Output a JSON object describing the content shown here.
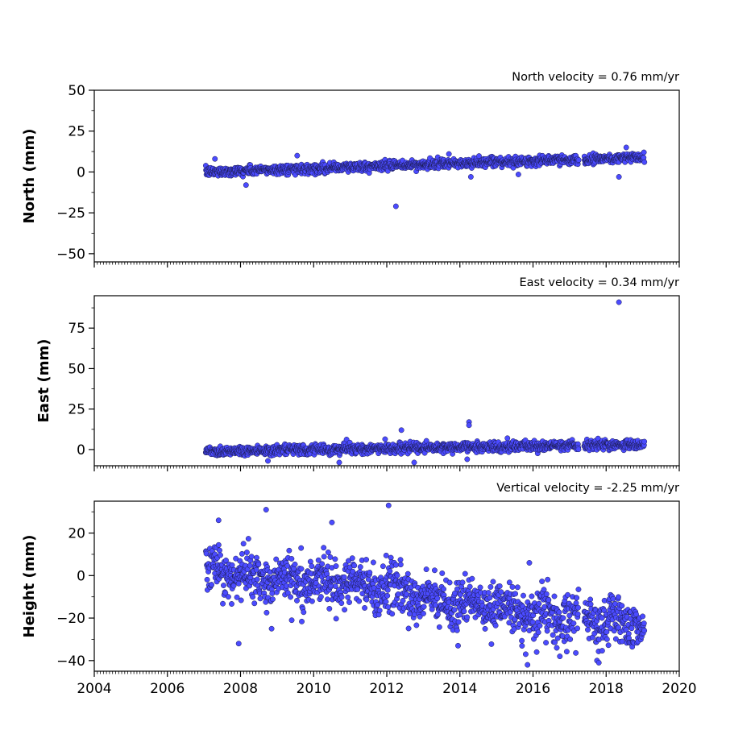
{
  "chart_data": [
    {
      "type": "scatter",
      "panel": "north",
      "ylabel": "North (mm)",
      "annotation": "North velocity = 0.76 mm/yr",
      "xlim": [
        2004,
        2020
      ],
      "ylim": [
        -55,
        50
      ],
      "xticks": [
        2004,
        2006,
        2008,
        2010,
        2012,
        2014,
        2016,
        2018,
        2020
      ],
      "yticks": [
        -50,
        -25,
        0,
        25,
        50
      ],
      "show_xtick_labels": false,
      "data_range": [
        2007.05,
        2019.05
      ],
      "gaps": [
        [
          2017.25,
          2017.4
        ]
      ],
      "trend": {
        "slope_mm_per_yr": 0.76,
        "value_at_start": 0,
        "start": 2007.05
      },
      "scatter_sd": 1.4,
      "outliers": [
        {
          "x": 2008.15,
          "y": -8
        },
        {
          "x": 2012.25,
          "y": -21
        },
        {
          "x": 2007.3,
          "y": 8
        },
        {
          "x": 2009.55,
          "y": 10
        },
        {
          "x": 2013.7,
          "y": 11
        },
        {
          "x": 2014.3,
          "y": -3
        },
        {
          "x": 2015.6,
          "y": -1.5
        },
        {
          "x": 2018.35,
          "y": -3
        },
        {
          "x": 2018.55,
          "y": 15
        }
      ],
      "marker_color": "#4b4bff",
      "marker_edge": "#1a1a4d",
      "grid": false
    },
    {
      "type": "scatter",
      "panel": "east",
      "ylabel": "East (mm)",
      "annotation": "East velocity = 0.34 mm/yr",
      "xlim": [
        2004,
        2020
      ],
      "ylim": [
        -10,
        95
      ],
      "xticks": [
        2004,
        2006,
        2008,
        2010,
        2012,
        2014,
        2016,
        2018,
        2020
      ],
      "yticks": [
        0,
        25,
        50,
        75
      ],
      "show_xtick_labels": false,
      "data_range": [
        2007.05,
        2019.05
      ],
      "gaps": [
        [
          2017.25,
          2017.4
        ]
      ],
      "trend": {
        "slope_mm_per_yr": 0.34,
        "value_at_start": -1,
        "start": 2007.05
      },
      "scatter_sd": 1.5,
      "outliers": [
        {
          "x": 2018.35,
          "y": 91
        },
        {
          "x": 2012.4,
          "y": 12
        },
        {
          "x": 2014.25,
          "y": 17
        },
        {
          "x": 2014.25,
          "y": 15
        },
        {
          "x": 2010.7,
          "y": -8
        },
        {
          "x": 2012.75,
          "y": -8
        },
        {
          "x": 2014.2,
          "y": -6
        },
        {
          "x": 2008.75,
          "y": -7
        },
        {
          "x": 2015.3,
          "y": 7
        }
      ],
      "marker_color": "#4b4bff",
      "marker_edge": "#1a1a4d",
      "grid": false
    },
    {
      "type": "scatter",
      "panel": "height",
      "ylabel": "Height (mm)",
      "annotation": "Vertical velocity = -2.25 mm/yr",
      "xlim": [
        2004,
        2020
      ],
      "ylim": [
        -45,
        35
      ],
      "xticks": [
        2004,
        2006,
        2008,
        2010,
        2012,
        2014,
        2016,
        2018,
        2020
      ],
      "xtick_labels": [
        "2004",
        "2006",
        "2008",
        "2010",
        "2012",
        "2014",
        "2016",
        "2018",
        "2020"
      ],
      "yticks": [
        -40,
        -20,
        0,
        20
      ],
      "show_xtick_labels": true,
      "data_range": [
        2007.05,
        2019.05
      ],
      "gaps": [
        [
          2017.25,
          2017.4
        ]
      ],
      "trend": {
        "slope_mm_per_yr": -2.25,
        "value_at_start": 3,
        "start": 2007.05
      },
      "scatter_sd": 5.5,
      "outliers": [
        {
          "x": 2008.7,
          "y": 31
        },
        {
          "x": 2012.05,
          "y": 33
        },
        {
          "x": 2010.5,
          "y": 25
        },
        {
          "x": 2007.4,
          "y": 26
        },
        {
          "x": 2007.95,
          "y": -32
        },
        {
          "x": 2008.85,
          "y": -25
        },
        {
          "x": 2009.4,
          "y": -21
        },
        {
          "x": 2015.85,
          "y": -42
        },
        {
          "x": 2015.8,
          "y": -37
        },
        {
          "x": 2016.1,
          "y": -36
        },
        {
          "x": 2016.65,
          "y": -34
        },
        {
          "x": 2017.75,
          "y": -40
        },
        {
          "x": 2017.8,
          "y": -41
        },
        {
          "x": 2013.95,
          "y": -33
        },
        {
          "x": 2015.9,
          "y": 6
        }
      ],
      "marker_color": "#4b4bff",
      "marker_edge": "#1a1a4d",
      "grid": false
    }
  ]
}
